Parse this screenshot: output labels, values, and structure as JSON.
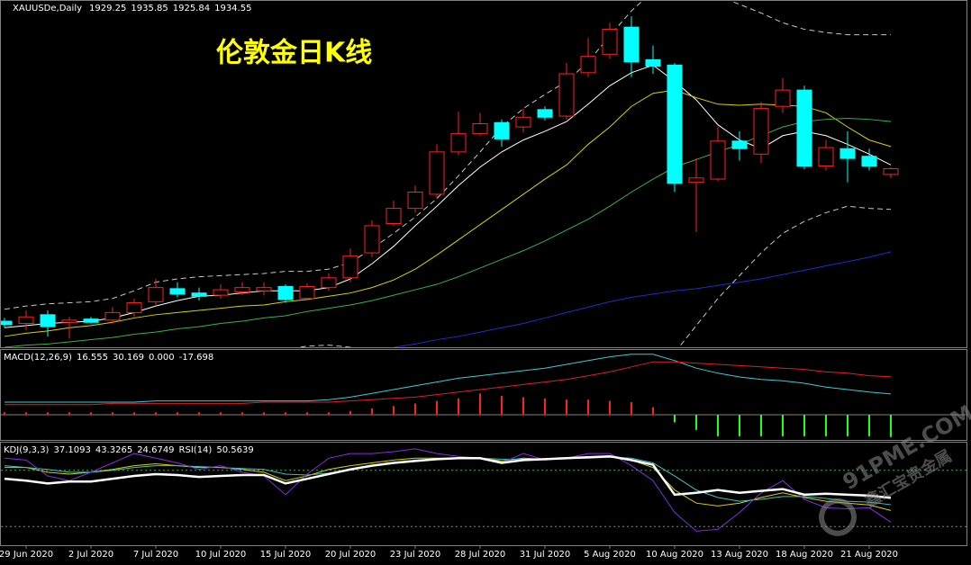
{
  "chart_data": [
    {
      "type": "candlestick",
      "title": "伦敦金日K线",
      "symbol": "XAUUSDe,Daily",
      "categories": [
        null,
        "29 Jun 2020",
        null,
        null,
        "2 Jul 2020",
        null,
        null,
        "7 Jul 2020",
        null,
        null,
        "10 Jul 2020",
        null,
        null,
        "15 Jul 2020",
        null,
        null,
        "20 Jul 2020",
        null,
        null,
        "23 Jul 2020",
        null,
        null,
        "28 Jul 2020",
        null,
        null,
        "31 Jul 2020",
        null,
        null,
        "5 Aug 2020",
        null,
        null,
        "10 Aug 2020",
        null,
        null,
        "13 Aug 2020",
        null,
        null,
        "18 Aug 2020",
        null,
        null,
        "21 Aug 2020",
        null
      ],
      "ohlc": [
        [
          1794,
          1797,
          1788,
          1791
        ],
        [
          1792,
          1804,
          1786,
          1798
        ],
        [
          1800,
          1804,
          1780,
          1789
        ],
        [
          1793,
          1798,
          1778,
          1795
        ],
        [
          1796,
          1798,
          1792,
          1793
        ],
        [
          1795,
          1807,
          1792,
          1802
        ],
        [
          1802,
          1815,
          1798,
          1811
        ],
        [
          1812,
          1833,
          1808,
          1825
        ],
        [
          1824,
          1830,
          1816,
          1819
        ],
        [
          1820,
          1825,
          1813,
          1817
        ],
        [
          1818,
          1828,
          1815,
          1823
        ],
        [
          1821,
          1830,
          1818,
          1825
        ],
        [
          1822,
          1830,
          1818,
          1825
        ],
        [
          1826,
          1828,
          1811,
          1814
        ],
        [
          1815,
          1829,
          1813,
          1826
        ],
        [
          1825,
          1838,
          1822,
          1834
        ],
        [
          1834,
          1861,
          1830,
          1854
        ],
        [
          1857,
          1887,
          1853,
          1882
        ],
        [
          1884,
          1905,
          1882,
          1898
        ],
        [
          1898,
          1919,
          1894,
          1913
        ],
        [
          1911,
          1957,
          1907,
          1950
        ],
        [
          1950,
          1987,
          1947,
          1967
        ],
        [
          1967,
          1986,
          1965,
          1976
        ],
        [
          1977,
          1980,
          1955,
          1962
        ],
        [
          1973,
          1990,
          1968,
          1982
        ],
        [
          1989,
          1992,
          1979,
          1982
        ],
        [
          1983,
          2032,
          1980,
          2022
        ],
        [
          2023,
          2055,
          2019,
          2038
        ],
        [
          2040,
          2069,
          2036,
          2063
        ],
        [
          2065,
          2075,
          2019,
          2033
        ],
        [
          2035,
          2048,
          2022,
          2029
        ],
        [
          2030,
          2032,
          1913,
          1921
        ],
        [
          1922,
          1944,
          1876,
          1926
        ],
        [
          1925,
          1973,
          1923,
          1960
        ],
        [
          1960,
          1969,
          1942,
          1953
        ],
        [
          1948,
          1996,
          1940,
          1990
        ],
        [
          1992,
          2018,
          1986,
          2007
        ],
        [
          2007,
          2011,
          1934,
          1937
        ],
        [
          1937,
          1961,
          1933,
          1954
        ],
        [
          1953,
          1969,
          1922,
          1944
        ],
        [
          1946,
          1953,
          1933,
          1937
        ],
        [
          1929.25,
          1935.85,
          1925.84,
          1934.55
        ]
      ],
      "up_color": "#ff2020",
      "down_color": "#00ffff",
      "ylim": [
        1770,
        2090
      ],
      "overlays": [
        {
          "color": "#ffffff",
          "dash": false,
          "values": [
            1788,
            1790,
            1792,
            1793,
            1794,
            1797,
            1802,
            1808,
            1813,
            1817,
            1818,
            1820,
            1822,
            1822,
            1822,
            1825,
            1833,
            1847,
            1863,
            1882,
            1900,
            1919,
            1936,
            1950,
            1961,
            1969,
            1978,
            1994,
            2011,
            2023,
            2030,
            2015,
            1998,
            1975,
            1961,
            1953,
            1965,
            1969,
            1965,
            1957,
            1948,
            1938
          ]
        },
        {
          "color": "#d8d000",
          "dash": false,
          "values": [
            1780,
            1783,
            1785,
            1788,
            1790,
            1793,
            1797,
            1800,
            1802,
            1804,
            1806,
            1808,
            1809,
            1812,
            1814,
            1817,
            1820,
            1825,
            1832,
            1842,
            1855,
            1869,
            1883,
            1897,
            1911,
            1925,
            1938,
            1957,
            1973,
            1992,
            2004,
            2007,
            2000,
            1994,
            1993,
            1994,
            1993,
            1992,
            1986,
            1973,
            1961,
            1955
          ]
        },
        {
          "color": "#3cb043",
          "dash": false,
          "values": [
            1770,
            1772,
            1773,
            1775,
            1777,
            1779,
            1782,
            1784,
            1787,
            1789,
            1792,
            1794,
            1797,
            1799,
            1803,
            1806,
            1809,
            1813,
            1818,
            1823,
            1828,
            1835,
            1843,
            1851,
            1859,
            1868,
            1878,
            1888,
            1900,
            1913,
            1925,
            1936,
            1943,
            1950,
            1957,
            1965,
            1973,
            1978,
            1980,
            1981,
            1980,
            1978
          ]
        },
        {
          "color": "#1c2cd0",
          "dash": false,
          "values": [
            null,
            null,
            null,
            null,
            null,
            null,
            null,
            null,
            null,
            null,
            null,
            null,
            null,
            null,
            null,
            null,
            null,
            null,
            1770,
            1773,
            1777,
            1780,
            1784,
            1788,
            1792,
            1797,
            1802,
            1807,
            1812,
            1816,
            1819,
            1822,
            1824,
            1827,
            1830,
            1833,
            1837,
            1841,
            1845,
            1849,
            1853,
            1858
          ]
        },
        {
          "color": "#c8c8c8",
          "dash": true,
          "values": [
            1805,
            1808,
            1810,
            1811,
            1812,
            1815,
            1822,
            1830,
            1833,
            1835,
            1836,
            1837,
            1838,
            1840,
            1840,
            1842,
            1848,
            1861,
            1875,
            1890,
            1907,
            1928,
            1950,
            1973,
            1990,
            2003,
            2015,
            2033,
            2057,
            2080,
            2098,
            2107,
            2103,
            2094,
            2086,
            2078,
            2069,
            2063,
            2060,
            2058,
            2058,
            2058
          ]
        },
        {
          "color": "#c8c8c8",
          "dash": true,
          "values": [
            1748,
            1748,
            1748,
            1750,
            1753,
            1755,
            1757,
            1758,
            1760,
            1761,
            1763,
            1765,
            1767,
            1768,
            1771,
            1772,
            1770,
            1765,
            1760,
            1755,
            1750,
            1742,
            1736,
            1730,
            1723,
            1719,
            1717,
            1715,
            1719,
            1723,
            1753,
            1765,
            1790,
            1815,
            1836,
            1857,
            1875,
            1886,
            1894,
            1900,
            1898,
            1897
          ]
        }
      ]
    },
    {
      "type": "macd",
      "label": "MACD(12,26,9)",
      "extra_value": "0.000",
      "ylim": [
        -20,
        50
      ],
      "macd": {
        "color": "#40c8d8",
        "values": [
          10,
          10,
          10,
          10,
          10,
          10,
          10,
          11,
          11,
          11,
          11,
          11,
          11,
          11,
          11,
          12,
          14,
          17,
          20,
          23,
          26,
          29,
          31,
          33,
          35,
          37,
          40,
          43,
          46,
          48,
          48,
          43,
          37,
          33,
          30,
          28,
          27,
          25,
          22,
          20,
          18,
          16.555
        ]
      },
      "signal": {
        "color": "#e02020",
        "values": [
          8,
          8,
          8,
          8,
          8,
          9,
          9,
          9,
          9,
          9,
          9,
          9,
          10,
          10,
          10,
          10,
          11,
          12,
          13,
          14,
          16,
          18,
          20,
          22,
          24,
          26,
          28,
          31,
          34,
          38,
          42,
          42,
          41,
          40,
          39,
          38,
          37,
          36,
          34,
          33,
          31,
          30.169
        ]
      },
      "histogram": {
        "up_color": "#ff2020",
        "down_color": "#20ff20",
        "values": [
          2,
          2,
          2,
          2,
          2,
          2,
          2,
          2,
          2,
          2,
          2,
          2,
          2,
          2,
          2,
          2,
          3,
          5,
          7,
          9,
          11,
          13,
          17,
          15,
          14,
          13,
          12,
          12,
          11,
          10,
          6,
          -6,
          -12,
          -17,
          -17,
          -17,
          -17,
          -17,
          -17,
          -17,
          -17,
          -17.698
        ]
      }
    },
    {
      "type": "line",
      "label": "KDJ(9,3,3)",
      "rsi_label": "RSI(14)",
      "ylim": [
        0,
        100
      ],
      "levels": [
        80,
        20
      ],
      "level_color": "#3cb043",
      "series": [
        {
          "color": "#d8d000",
          "width": 1,
          "values": [
            83,
            83,
            78,
            76,
            78,
            81,
            85,
            87,
            85,
            83,
            83,
            81,
            78,
            69,
            74,
            81,
            85,
            88,
            91,
            93,
            93,
            93,
            93,
            90,
            93,
            92,
            93,
            94,
            95,
            91,
            83,
            59,
            45,
            42,
            45,
            51,
            56,
            51,
            47,
            45,
            43,
            37.1093
          ]
        },
        {
          "color": "#40c0c0",
          "width": 1,
          "values": [
            85,
            83,
            81,
            78,
            78,
            80,
            83,
            85,
            85,
            84,
            83,
            82,
            81,
            76,
            75,
            77,
            81,
            85,
            88,
            91,
            92,
            93,
            93,
            92,
            92,
            92,
            93,
            93,
            94,
            93,
            88,
            74,
            59,
            51,
            47,
            49,
            52,
            52,
            50,
            47,
            46,
            43.3265
          ]
        },
        {
          "color": "#8a2be2",
          "width": 1,
          "values": [
            93,
            91,
            74,
            69,
            78,
            88,
            98,
            93,
            88,
            81,
            85,
            78,
            74,
            54,
            76,
            93,
            98,
            98,
            100,
            103,
            98,
            95,
            93,
            88,
            98,
            91,
            93,
            98,
            98,
            85,
            69,
            35,
            15,
            17,
            35,
            56,
            69,
            49,
            40,
            39,
            40,
            24.6749
          ]
        },
        {
          "color": "#ffffff",
          "width": 2.5,
          "values": [
            71,
            69,
            66,
            68,
            68,
            71,
            74,
            76,
            75,
            73,
            74,
            75,
            75,
            66,
            71,
            76,
            81,
            85,
            88,
            90,
            92,
            93,
            93,
            88,
            91,
            92,
            93,
            94,
            95,
            91,
            86,
            54,
            56,
            59,
            56,
            58,
            60,
            54,
            55,
            54,
            53,
            50.5639
          ]
        }
      ]
    }
  ],
  "watermark": {
    "site": "91PME.COM",
    "name": "鑫汇宝贵金属"
  }
}
